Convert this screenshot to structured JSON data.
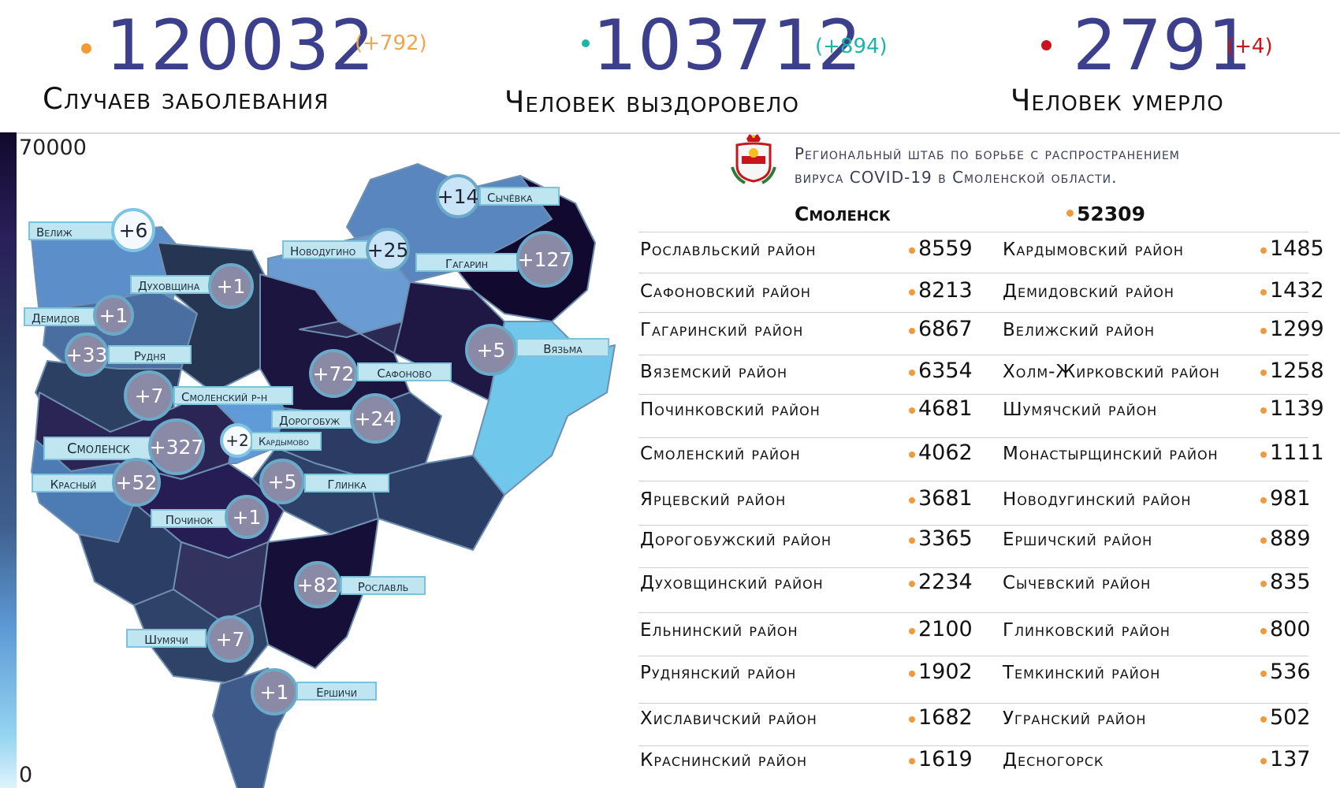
{
  "header": {
    "cases": {
      "value": "120032",
      "delta": "(+792)",
      "caption": "Случаев заболевания",
      "dot_color": "#f39c35",
      "delta_color": "#f0a64a"
    },
    "recovered": {
      "value": "103712",
      "delta": "(+894)",
      "caption": "Человек выздоровело",
      "dot_color": "#1bb5a5",
      "delta_color": "#1bb5a5"
    },
    "deaths": {
      "value": "2791",
      "delta": "(+4)",
      "caption": "Человек умерло",
      "dot_color": "#c8141b",
      "delta_color": "#c8141b"
    }
  },
  "legend": {
    "max": "70000",
    "min": "0"
  },
  "headquarters": {
    "line1": "Региональный штаб по борьбе с распространением",
    "line2": "вируса  COVID-19 в Смоленской области."
  },
  "city": {
    "name": "Смоленск",
    "value": "52309"
  },
  "districts_left": [
    {
      "name": "Рославльский район",
      "value": "8559"
    },
    {
      "name": "Сафоновский район",
      "value": "8213"
    },
    {
      "name": "Гагаринский район",
      "value": "6867"
    },
    {
      "name": "Вяземский район",
      "value": "6354"
    },
    {
      "name": "Починковский район",
      "value": "4681"
    },
    {
      "name": "Смоленский район",
      "value": "4062"
    },
    {
      "name": "Ярцевский район",
      "value": "3681"
    },
    {
      "name": "Дорогобужский район",
      "value": "3365"
    },
    {
      "name": "Духовщинский район",
      "value": "2234"
    },
    {
      "name": "Ельнинский район",
      "value": "2100"
    },
    {
      "name": "Руднянский район",
      "value": "1902"
    },
    {
      "name": "Хиславичский район",
      "value": "1682"
    },
    {
      "name": "Краснинский район",
      "value": "1619"
    }
  ],
  "districts_right": [
    {
      "name": "Кардымовский район",
      "value": "1485"
    },
    {
      "name": "Демидовский район",
      "value": "1432"
    },
    {
      "name": "Велижский район",
      "value": "1299"
    },
    {
      "name": "Холм-Жирковский район",
      "value": "1258"
    },
    {
      "name": "Шумячский район",
      "value": "1139"
    },
    {
      "name": "Монастырщинский район",
      "value": "1111"
    },
    {
      "name": "Новодугинский район",
      "value": "981"
    },
    {
      "name": "Ершичский район",
      "value": "889"
    },
    {
      "name": "Сычевский район",
      "value": "835"
    },
    {
      "name": "Глинковский район",
      "value": "800"
    },
    {
      "name": "Темкинский район",
      "value": "536"
    },
    {
      "name": "Угранский район",
      "value": "502"
    },
    {
      "name": "Десногорск",
      "value": "137"
    }
  ],
  "map_labels": {
    "velizh": {
      "name": "Велиж",
      "delta": "+6"
    },
    "sychevka": {
      "name": "Сычёвка",
      "delta": "+14"
    },
    "novodugino": {
      "name": "Новодугино",
      "delta": "+25"
    },
    "gagarin": {
      "name": "Гагарин",
      "delta": "+127"
    },
    "dukhovshchina": {
      "name": "Духовщина",
      "delta": "+1"
    },
    "demidov": {
      "name": "Демидов",
      "delta": "+1"
    },
    "rudnya": {
      "name": "Рудня",
      "delta": "+33"
    },
    "vyazma": {
      "name": "Вязьма",
      "delta": "+5"
    },
    "safonovo": {
      "name": "Сафоново",
      "delta": "+72"
    },
    "smolensky_rn": {
      "name": "Смоленский р-н",
      "delta": "+7"
    },
    "dorogobuzh": {
      "name": "Дорогобуж",
      "delta": "+24"
    },
    "smolensk": {
      "name": "Смоленск",
      "delta": "+327"
    },
    "kardymovo": {
      "name": "Кардымово",
      "delta": "+2"
    },
    "krasny": {
      "name": "Красный",
      "delta": "+52"
    },
    "glinka": {
      "name": "Глинка",
      "delta": "+5"
    },
    "pochinok": {
      "name": "Починок",
      "delta": "+1"
    },
    "roslavl": {
      "name": "Рославль",
      "delta": "+82"
    },
    "shumyachi": {
      "name": "Шумячи",
      "delta": "+7"
    },
    "ershichi": {
      "name": "Ершичи",
      "delta": "+1"
    }
  }
}
